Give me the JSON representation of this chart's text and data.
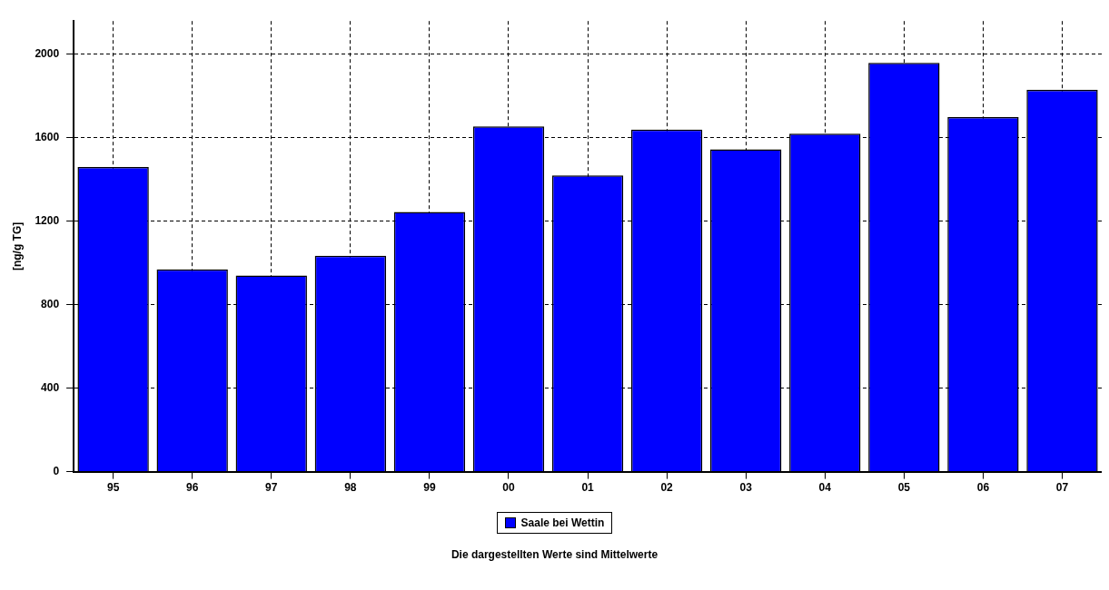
{
  "chart_data": {
    "type": "bar",
    "ylabel": "[ng/g TG]",
    "categories": [
      "95",
      "96",
      "97",
      "98",
      "99",
      "00",
      "01",
      "02",
      "03",
      "04",
      "05",
      "06",
      "07"
    ],
    "series": [
      {
        "name": "Saale bei Wettin",
        "color": "#0000ff",
        "values": [
          1460,
          970,
          940,
          1035,
          1245,
          1655,
          1420,
          1640,
          1545,
          1620,
          1960,
          1700,
          1830
        ]
      }
    ],
    "ylim": [
      0,
      2160
    ],
    "yticks": [
      0,
      400,
      800,
      1200,
      1600,
      2000
    ],
    "grid": true,
    "legend": "bottom",
    "annotations": [
      "Die dargestellten Werte sind Mittelwerte"
    ]
  }
}
